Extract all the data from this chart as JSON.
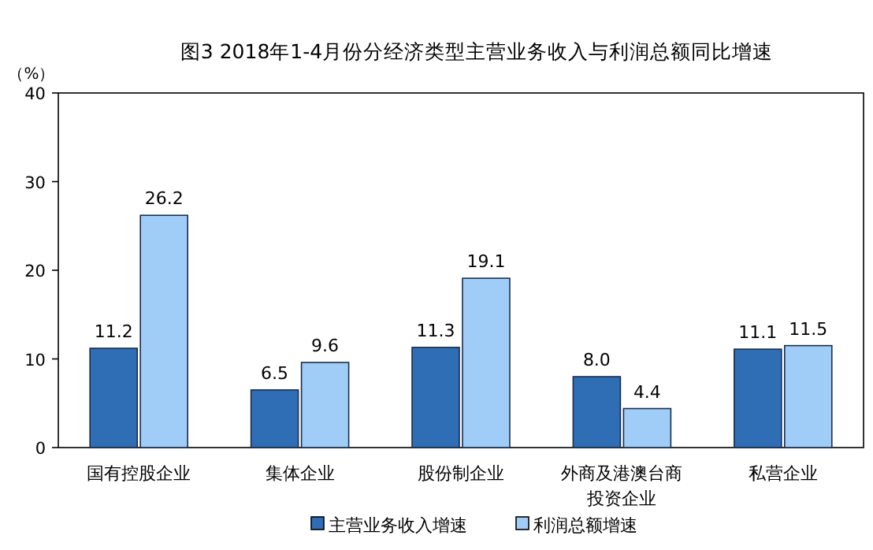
{
  "chart_data": {
    "type": "bar",
    "title": "图3 2018年1-4月份分经济类型主营业务收入与利润总额同比增速",
    "ylabel": "（%）",
    "categories": [
      "国有控股企业",
      "集体企业",
      "股份制企业",
      "外商及港澳台商投资企业",
      "私营企业"
    ],
    "series": [
      {
        "name": "主营业务收入增速",
        "color": "#2f6db5",
        "values": [
          11.2,
          6.5,
          11.3,
          8.0,
          11.1
        ],
        "value_labels": [
          "11.2",
          "6.5",
          "11.3",
          "8.0",
          "11.1"
        ]
      },
      {
        "name": "利润总额增速",
        "color": "#9fcdf7",
        "values": [
          26.2,
          9.6,
          19.1,
          4.4,
          11.5
        ],
        "value_labels": [
          "26.2",
          "9.6",
          "19.1",
          "4.4",
          "11.5"
        ]
      }
    ],
    "ylim": [
      0,
      40
    ],
    "yticks": [
      0,
      10,
      20,
      30,
      40
    ],
    "legend": "bottom"
  }
}
